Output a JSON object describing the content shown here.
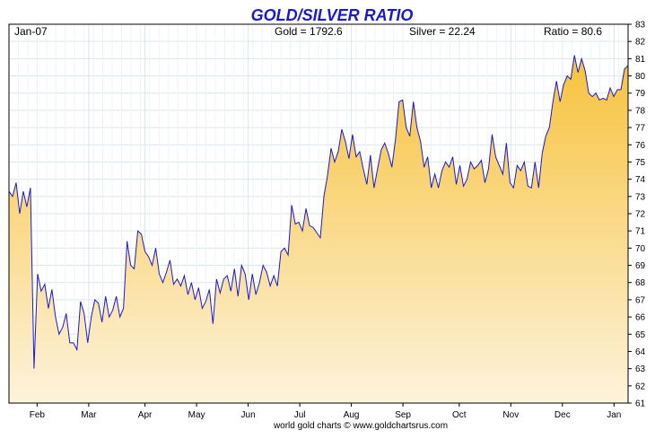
{
  "chart_data": {
    "type": "area",
    "title": "GOLD/SILVER RATIO",
    "header": {
      "date": "Jan-07",
      "gold": "Gold = 1792.6",
      "silver": "Silver = 22.24",
      "ratio": "Ratio = 80.6"
    },
    "credit": "world gold charts © www.goldchartsrus.com",
    "xlabel": "",
    "ylabel": "",
    "ylim": [
      61,
      83
    ],
    "y_ticks": [
      "83",
      "82",
      "81",
      "80",
      "79",
      "78",
      "77",
      "76",
      "75",
      "74",
      "73",
      "72",
      "71",
      "70",
      "69",
      "68",
      "67",
      "66",
      "65",
      "64",
      "63",
      "62",
      "61"
    ],
    "x_ticks": [
      {
        "label": "Feb",
        "x": 6
      },
      {
        "label": "Mar",
        "x": 17
      },
      {
        "label": "Apr",
        "x": 29
      },
      {
        "label": "May",
        "x": 40
      },
      {
        "label": "Jun",
        "x": 51
      },
      {
        "label": "Jul",
        "x": 62
      },
      {
        "label": "Aug",
        "x": 73
      },
      {
        "label": "Sep",
        "x": 84
      },
      {
        "label": "Oct",
        "x": 96
      },
      {
        "label": "Nov",
        "x": 107
      },
      {
        "label": "Dec",
        "x": 118
      },
      {
        "label": "Jan",
        "x": 129
      }
    ],
    "xlim": [
      0,
      132
    ],
    "grid": true,
    "colors": {
      "line": "#1a1acc",
      "fill_top": "#f7c23c",
      "fill_bottom": "#fdf3dc",
      "grid": "#d9e6ea",
      "axis": "#000000",
      "title": "#1a1acc"
    },
    "series": [
      {
        "values": [
          73.3,
          73.0,
          73.8,
          72.0,
          73.3,
          72.4,
          73.5,
          63.0,
          68.5,
          67.5,
          67.9,
          66.5,
          67.6,
          66.0,
          65.0,
          65.4,
          66.2,
          64.5,
          64.5,
          64.1,
          66.9,
          66.2,
          64.5,
          66.0,
          67.0,
          66.8,
          65.7,
          67.2,
          66.0,
          66.4,
          67.2,
          66.0,
          66.5,
          70.4,
          69.0,
          68.8,
          71.0,
          70.8,
          69.8,
          69.5,
          69.0,
          70.0,
          68.5,
          68.0,
          68.6,
          69.3,
          67.9,
          68.2,
          67.8,
          68.4,
          67.3,
          68.0,
          67.0,
          67.7,
          66.5,
          66.9,
          67.6,
          65.6,
          68.2,
          67.4,
          68.2,
          68.4,
          67.5,
          68.8,
          67.2,
          69.0,
          68.5,
          67.0,
          68.5,
          67.3,
          68.0,
          69.0,
          68.6,
          67.8,
          68.4,
          67.8,
          69.8,
          70.0,
          69.6,
          72.5,
          71.4,
          71.5,
          71.0,
          72.3,
          71.3,
          71.2,
          70.9,
          70.6,
          73.0,
          74.2,
          75.8,
          75.0,
          75.6,
          76.9,
          76.2,
          75.2,
          76.6,
          75.3,
          75.6,
          74.6,
          73.7,
          75.4,
          73.5,
          74.6,
          75.7,
          76.1,
          75.5,
          74.7,
          76.3,
          78.5,
          78.6,
          77.0,
          76.5,
          78.5,
          77.0,
          76.2,
          74.7,
          75.3,
          73.5,
          74.3,
          73.5,
          74.5,
          75.0,
          74.7,
          75.3,
          73.7,
          74.8,
          73.6,
          74.0,
          75.0,
          74.6,
          74.8,
          75.1,
          73.8,
          74.6,
          76.6,
          75.3,
          74.8,
          74.3,
          76.1,
          73.8,
          73.5,
          74.8,
          74.5,
          75.0,
          73.6,
          73.5,
          75.0,
          73.5,
          75.5,
          76.5,
          77.0,
          78.5,
          79.7,
          78.5,
          79.5,
          80.0,
          79.8,
          81.2,
          80.2,
          81.0,
          80.3,
          79.0,
          78.8,
          79.0,
          78.6,
          78.7,
          78.6,
          79.3,
          78.8,
          79.2,
          79.2,
          80.4,
          80.6
        ]
      }
    ]
  }
}
